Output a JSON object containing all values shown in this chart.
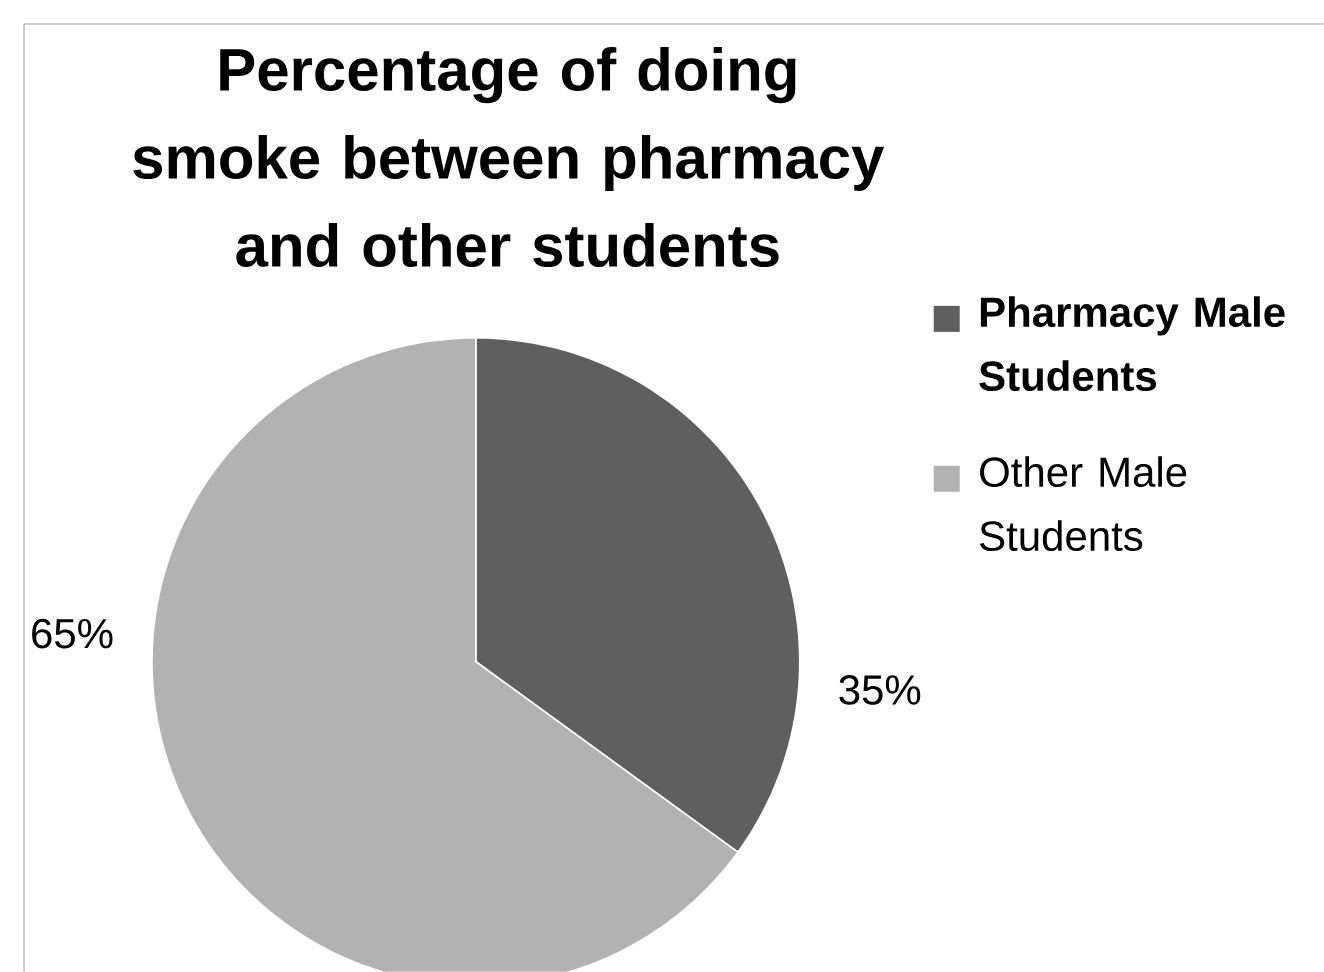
{
  "chart_data": {
    "type": "pie",
    "title": "Percentage of doing smoke between  pharmacy and other students",
    "categories": [
      "**Pharmacy Male Students**",
      "Other Male Students"
    ],
    "values": [
      35,
      65
    ],
    "colors": [
      "#5f5f5f",
      "#b2b2b2"
    ],
    "value_labels": [
      "35%",
      "65%"
    ],
    "legend": "right"
  }
}
